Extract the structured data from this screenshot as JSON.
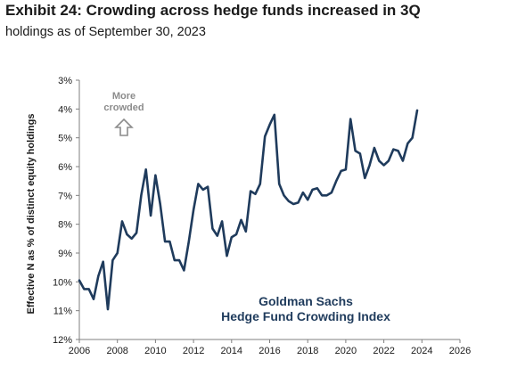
{
  "title": "Exhibit 24: Crowding across hedge funds increased in 3Q",
  "subtitle": "holdings as of September 30, 2023",
  "annotation": {
    "line1": "More",
    "line2": "crowded",
    "icon": "arrow-up-outline-icon"
  },
  "series_label": {
    "line1": "Goldman Sachs",
    "line2": "Hedge Fund Crowding Index"
  },
  "colors": {
    "line": "#1f3b5c",
    "axis": "#7f7f7f",
    "text": "#1a1a1a",
    "annotation": "#8c8c8c"
  },
  "chart_data": {
    "type": "line",
    "title": "Exhibit 24: Crowding across hedge funds increased in 3Q",
    "subtitle": "holdings as of September 30, 2023",
    "ylabel": "Effective N as % of distinct equity holdings",
    "xlabel": "",
    "xlim": [
      2006,
      2026
    ],
    "ylim": [
      12,
      3
    ],
    "y_inverted": true,
    "grid": false,
    "x_ticks": [
      "2006",
      "2008",
      "2010",
      "2012",
      "2014",
      "2016",
      "2018",
      "2020",
      "2022",
      "2024",
      "2026"
    ],
    "y_ticks": [
      "3%",
      "4%",
      "5%",
      "6%",
      "7%",
      "8%",
      "9%",
      "10%",
      "11%",
      "12%"
    ],
    "series": [
      {
        "name": "Goldman Sachs Hedge Fund Crowding Index",
        "x": [
          2006.0,
          2006.25,
          2006.5,
          2006.75,
          2007.0,
          2007.25,
          2007.5,
          2007.75,
          2008.0,
          2008.25,
          2008.5,
          2008.75,
          2009.0,
          2009.25,
          2009.5,
          2009.75,
          2010.0,
          2010.25,
          2010.5,
          2010.75,
          2011.0,
          2011.25,
          2011.5,
          2011.75,
          2012.0,
          2012.25,
          2012.5,
          2012.75,
          2013.0,
          2013.25,
          2013.5,
          2013.75,
          2014.0,
          2014.25,
          2014.5,
          2014.75,
          2015.0,
          2015.25,
          2015.5,
          2015.75,
          2016.0,
          2016.25,
          2016.5,
          2016.75,
          2017.0,
          2017.25,
          2017.5,
          2017.75,
          2018.0,
          2018.25,
          2018.5,
          2018.75,
          2019.0,
          2019.25,
          2019.5,
          2019.75,
          2020.0,
          2020.25,
          2020.5,
          2020.75,
          2021.0,
          2021.25,
          2021.5,
          2021.75,
          2022.0,
          2022.25,
          2022.5,
          2022.75,
          2023.0,
          2023.25,
          2023.5,
          2023.75
        ],
        "values": [
          9.95,
          10.25,
          10.25,
          10.6,
          9.8,
          9.3,
          10.95,
          9.25,
          9.0,
          7.9,
          8.35,
          8.5,
          8.3,
          7.0,
          6.1,
          7.7,
          6.3,
          7.3,
          8.6,
          8.6,
          9.25,
          9.25,
          9.6,
          8.6,
          7.5,
          6.6,
          6.8,
          6.7,
          8.15,
          8.4,
          7.9,
          9.1,
          8.45,
          8.35,
          7.85,
          8.25,
          6.85,
          6.95,
          6.6,
          4.95,
          4.55,
          4.2,
          6.6,
          7.0,
          7.2,
          7.3,
          7.25,
          6.9,
          7.15,
          6.8,
          6.75,
          7.0,
          7.0,
          6.9,
          6.5,
          6.15,
          6.1,
          4.35,
          5.45,
          5.55,
          6.4,
          5.95,
          5.35,
          5.8,
          5.95,
          5.8,
          5.4,
          5.45,
          5.8,
          5.2,
          5.0,
          4.05
        ]
      }
    ]
  }
}
